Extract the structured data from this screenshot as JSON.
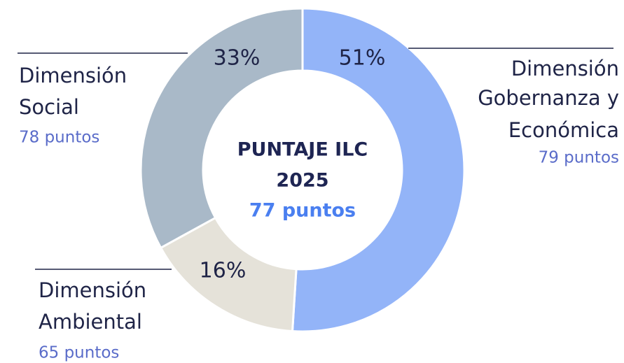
{
  "chart_data": {
    "type": "donut",
    "categories": [
      [
        "Dimensión",
        "Gobernanza y",
        "Económica"
      ],
      [
        "Dimensión",
        "Ambiental"
      ],
      [
        "Dimensión",
        "Social"
      ]
    ],
    "values": [
      51,
      16,
      33
    ],
    "value_labels": [
      "51%",
      "16%",
      "33%"
    ],
    "colors": [
      "#93b4f8",
      "#e5e2d9",
      "#a9b9c8"
    ],
    "scores": [
      79,
      65,
      78
    ],
    "score_labels": [
      "79 puntos",
      "65 puntos",
      "78 puntos"
    ],
    "center_title": [
      "PUNTAJE ILC",
      "2025"
    ],
    "center_value": 77,
    "center_value_label": "77 puntos"
  }
}
